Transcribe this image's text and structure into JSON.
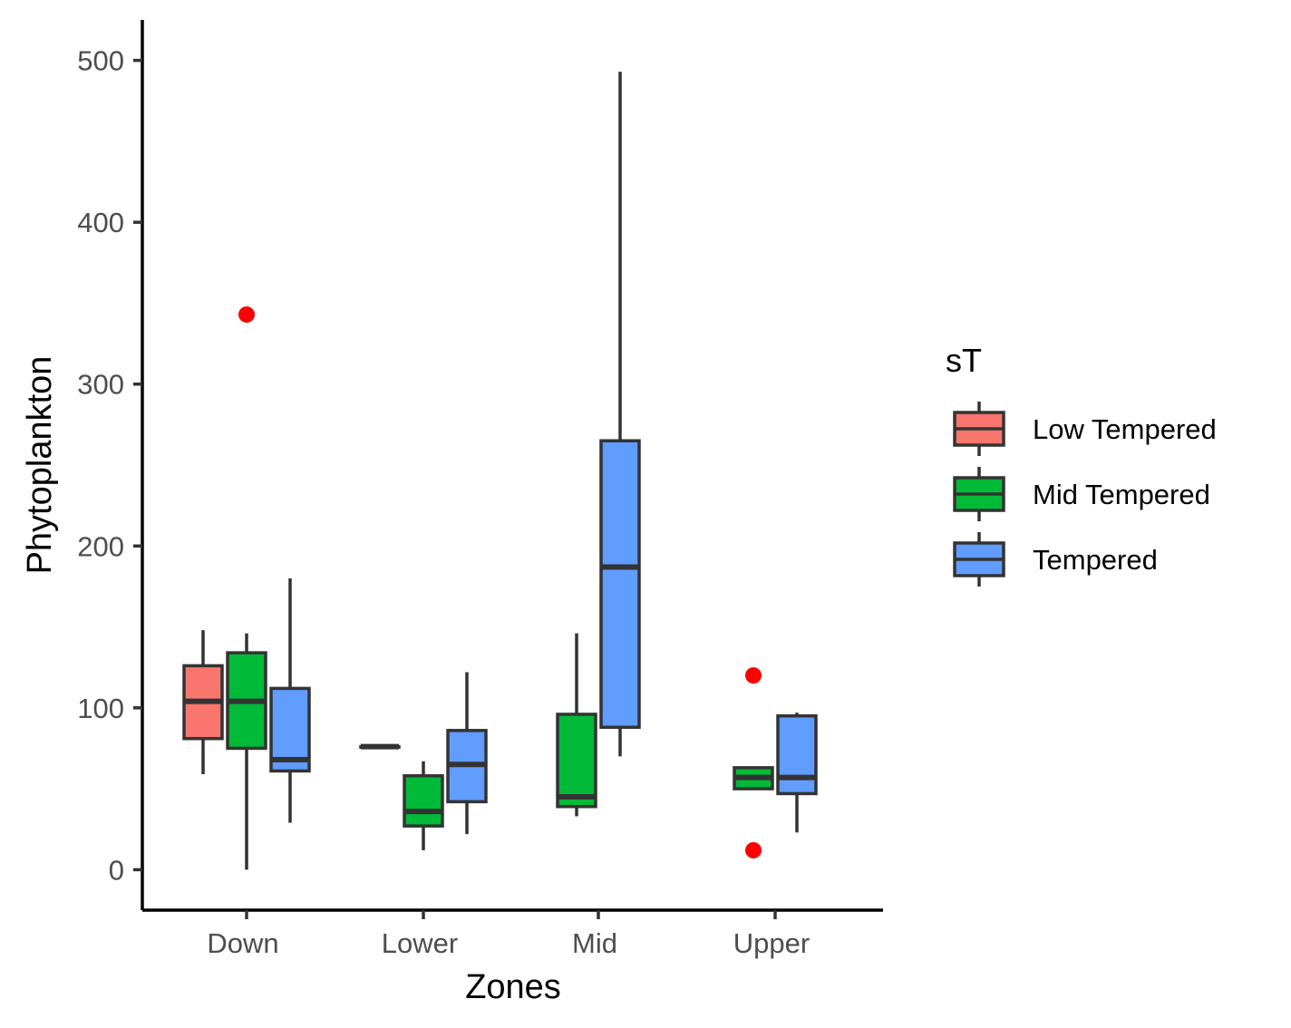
{
  "chart_data": {
    "type": "boxplot",
    "xlabel": "Zones",
    "ylabel": "Phytoplankton",
    "categories": [
      "Down",
      "Lower",
      "Mid",
      "Upper"
    ],
    "ylim": [
      -25,
      525
    ],
    "yticks": [
      0,
      100,
      200,
      300,
      400,
      500
    ],
    "grid": false,
    "legend": {
      "title": "sT",
      "placement": "right",
      "entries": [
        "Low Tempered",
        "Mid Tempered",
        "Tempered"
      ]
    },
    "colors": {
      "Low Tempered": "#F8766D",
      "Mid Tempered": "#00BA38",
      "Tempered": "#619CFF",
      "outline": "#333333",
      "outlier": "#FF0000",
      "axis": "#000000"
    },
    "series": [
      {
        "name": "Low Tempered",
        "boxes": [
          {
            "category": "Down",
            "whisker_low": 59,
            "q1": 81,
            "median": 104,
            "q3": 126,
            "whisker_high": 148,
            "outliers": []
          },
          {
            "category": "Lower",
            "whisker_low": 76,
            "q1": 76,
            "median": 76,
            "q3": 76,
            "whisker_high": 76,
            "outliers": []
          }
        ]
      },
      {
        "name": "Mid Tempered",
        "boxes": [
          {
            "category": "Down",
            "whisker_low": 0,
            "q1": 75,
            "median": 104,
            "q3": 134,
            "whisker_high": 146,
            "outliers": [
              343
            ]
          },
          {
            "category": "Lower",
            "whisker_low": 12,
            "q1": 27,
            "median": 36,
            "q3": 58,
            "whisker_high": 67,
            "outliers": []
          },
          {
            "category": "Mid",
            "whisker_low": 33,
            "q1": 39,
            "median": 45,
            "q3": 96,
            "whisker_high": 146,
            "outliers": []
          },
          {
            "category": "Upper",
            "whisker_low": 50,
            "q1": 50,
            "median": 57,
            "q3": 63,
            "whisker_high": 63,
            "outliers": [
              120,
              12
            ]
          }
        ]
      },
      {
        "name": "Tempered",
        "boxes": [
          {
            "category": "Down",
            "whisker_low": 29,
            "q1": 61,
            "median": 68,
            "q3": 112,
            "whisker_high": 180,
            "outliers": []
          },
          {
            "category": "Lower",
            "whisker_low": 22,
            "q1": 42,
            "median": 65,
            "q3": 86,
            "whisker_high": 122,
            "outliers": []
          },
          {
            "category": "Mid",
            "whisker_low": 70,
            "q1": 88,
            "median": 187,
            "q3": 265,
            "whisker_high": 493,
            "outliers": []
          },
          {
            "category": "Upper",
            "whisker_low": 23,
            "q1": 47,
            "median": 57,
            "q3": 95,
            "whisker_high": 97,
            "outliers": []
          }
        ]
      }
    ]
  }
}
